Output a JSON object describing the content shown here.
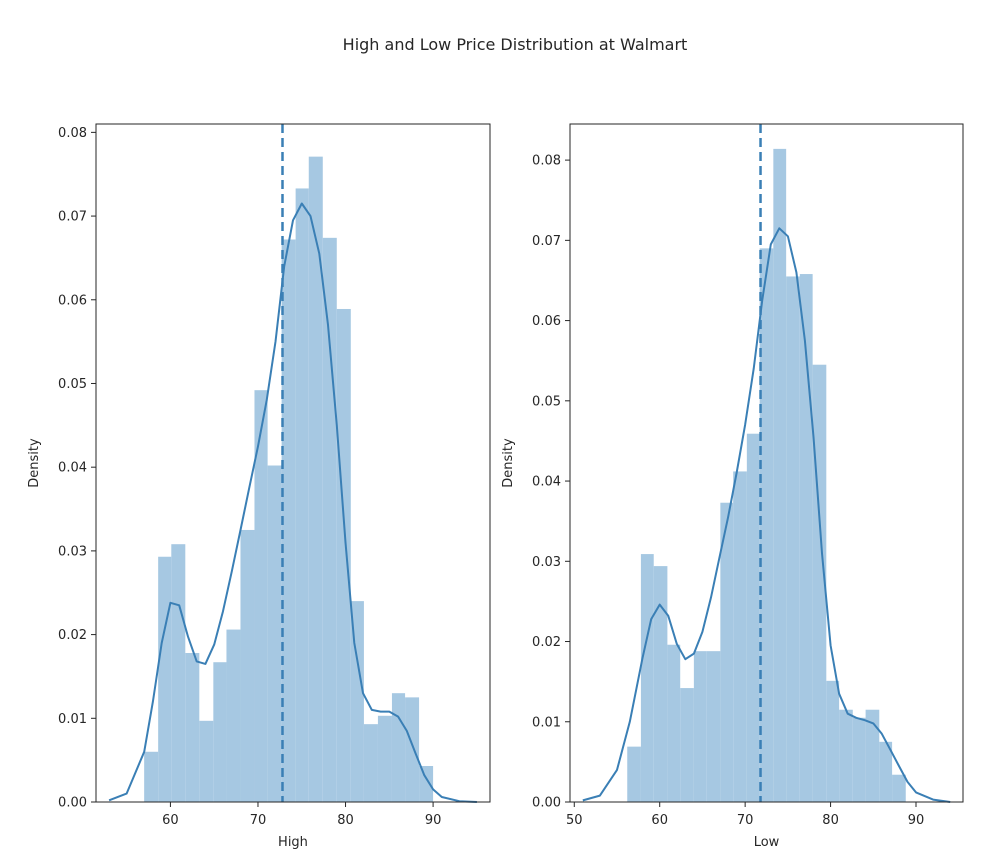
{
  "suptitle": "High and Low Price Distribution at Walmart",
  "colors": {
    "bar": "#a6c8e2",
    "line": "#3a7fb5",
    "axis": "#262626"
  },
  "chart_data": [
    {
      "type": "histogram",
      "xlabel": "High",
      "ylabel": "Density",
      "xlim": [
        51.5,
        96.5
      ],
      "ylim": [
        0,
        0.081
      ],
      "xticks": [
        60,
        70,
        80,
        90
      ],
      "yticks": [
        0,
        0.01,
        0.02,
        0.03,
        0.04,
        0.05,
        0.06,
        0.07,
        0.08
      ],
      "bin_edges": [
        57.0,
        58.6,
        60.1,
        61.7,
        63.3,
        64.9,
        66.4,
        68.0,
        69.6,
        71.1,
        72.7,
        74.3,
        75.8,
        77.4,
        79.0,
        80.6,
        82.1,
        83.7,
        85.3,
        86.8,
        88.4,
        90.0
      ],
      "density": [
        0.006,
        0.0293,
        0.0308,
        0.0178,
        0.0097,
        0.0167,
        0.0206,
        0.0325,
        0.0492,
        0.0402,
        0.0672,
        0.0733,
        0.0771,
        0.0674,
        0.0589,
        0.024,
        0.0093,
        0.0103,
        0.013,
        0.0125,
        0.0043
      ],
      "kde": {
        "x": [
          53,
          55,
          57,
          58,
          59,
          60,
          61,
          62,
          63,
          64,
          65,
          66,
          67,
          68,
          69,
          70,
          71,
          72,
          73,
          74,
          75,
          76,
          77,
          78,
          79,
          80,
          81,
          82,
          83,
          84,
          85,
          86,
          87,
          88,
          89,
          90,
          91,
          93,
          95
        ],
        "y": [
          0.0002,
          0.001,
          0.006,
          0.012,
          0.019,
          0.0238,
          0.0235,
          0.0198,
          0.0168,
          0.0165,
          0.0188,
          0.0228,
          0.0275,
          0.0325,
          0.0375,
          0.0425,
          0.048,
          0.055,
          0.064,
          0.0695,
          0.0715,
          0.07,
          0.0655,
          0.057,
          0.045,
          0.031,
          0.019,
          0.013,
          0.011,
          0.0108,
          0.0108,
          0.0102,
          0.0085,
          0.0058,
          0.0032,
          0.0015,
          0.0006,
          0.0001,
          0.0
        ]
      },
      "mean_line": 72.8
    },
    {
      "type": "histogram",
      "xlabel": "Low",
      "ylabel": "Density",
      "xlim": [
        49.5,
        95.5
      ],
      "ylim": [
        0,
        0.0845
      ],
      "xticks": [
        50,
        60,
        70,
        80,
        90
      ],
      "yticks": [
        0,
        0.01,
        0.02,
        0.03,
        0.04,
        0.05,
        0.06,
        0.07,
        0.08
      ],
      "bin_edges": [
        56.2,
        57.8,
        59.3,
        60.9,
        62.4,
        64.0,
        65.5,
        67.1,
        68.6,
        70.2,
        71.7,
        73.3,
        74.8,
        76.4,
        77.9,
        79.5,
        81.0,
        82.6,
        84.1,
        85.7,
        87.2,
        88.8
      ],
      "density": [
        0.0069,
        0.0309,
        0.0294,
        0.0196,
        0.0142,
        0.0188,
        0.0188,
        0.0373,
        0.0412,
        0.0459,
        0.069,
        0.0814,
        0.0655,
        0.0658,
        0.0545,
        0.0151,
        0.0115,
        0.0105,
        0.0115,
        0.0075,
        0.0034
      ],
      "kde": {
        "x": [
          51,
          53,
          55,
          56.5,
          58,
          59,
          60,
          61,
          62,
          63,
          64,
          65,
          66,
          67,
          68,
          69,
          70,
          71,
          72,
          73,
          74,
          75,
          76,
          77,
          78,
          79,
          80,
          81,
          82,
          83,
          84,
          85,
          86,
          87,
          88,
          89,
          90,
          92,
          94
        ],
        "y": [
          0.0002,
          0.0008,
          0.004,
          0.01,
          0.018,
          0.0228,
          0.0246,
          0.0232,
          0.0197,
          0.0178,
          0.0185,
          0.0212,
          0.0255,
          0.0305,
          0.0355,
          0.041,
          0.047,
          0.054,
          0.0625,
          0.0695,
          0.0715,
          0.0705,
          0.066,
          0.0575,
          0.0455,
          0.031,
          0.0195,
          0.0135,
          0.011,
          0.0105,
          0.0102,
          0.0098,
          0.0085,
          0.0065,
          0.0045,
          0.0025,
          0.0012,
          0.0003,
          0.0
        ]
      },
      "mean_line": 71.8
    }
  ]
}
